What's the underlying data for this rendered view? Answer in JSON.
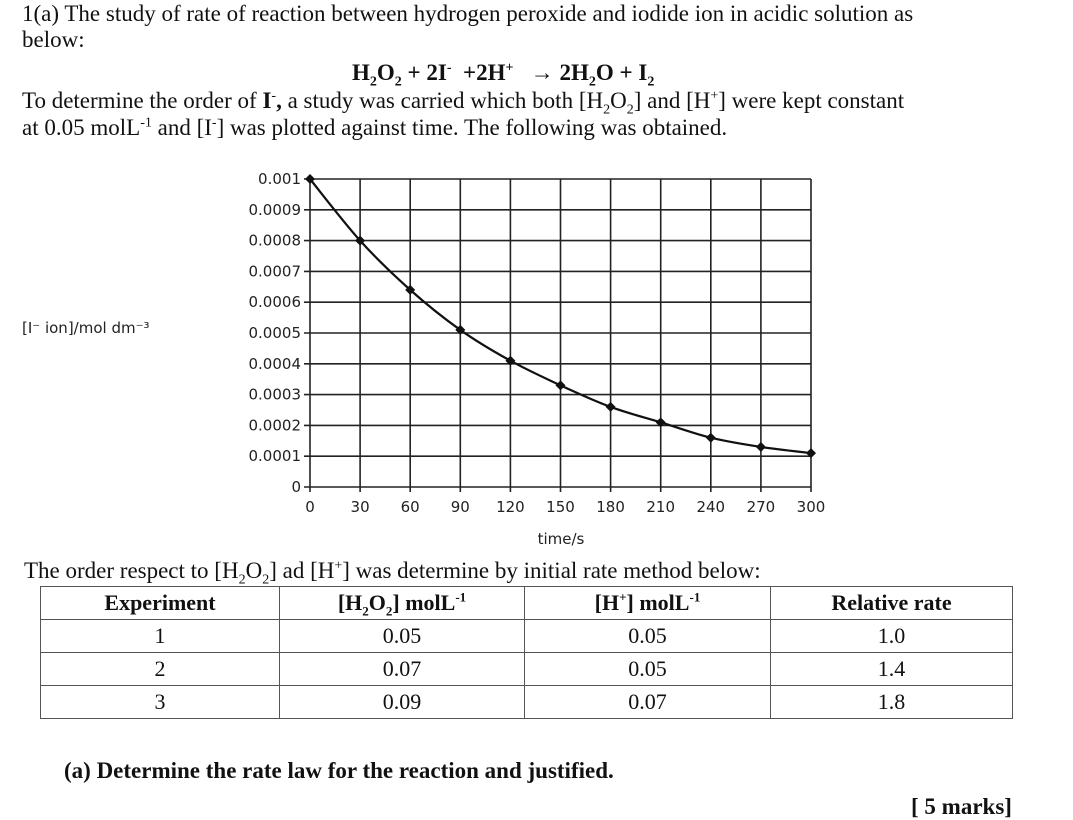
{
  "intro": {
    "line1": [
      {
        "t": "1(a) The study of rate of reaction between hydrogen peroxide and iodide ion in acidic solution as"
      }
    ],
    "line2": [
      {
        "t": "below:"
      }
    ],
    "equation": [
      {
        "t": "H"
      },
      {
        "sub": "2"
      },
      {
        "t": "O"
      },
      {
        "sub": "2"
      },
      {
        "t": " + 2I"
      },
      {
        "sup": "-"
      },
      {
        "t": "  +2H"
      },
      {
        "sup": "+"
      },
      {
        "t": "   → 2H"
      },
      {
        "sub": "2"
      },
      {
        "t": "O + I"
      },
      {
        "sub": "2"
      }
    ],
    "line3": [
      {
        "t": "To determine the order of "
      },
      {
        "b": "I"
      },
      {
        "sup": "-"
      },
      {
        "b": ","
      },
      {
        "t": " a study was carried which both [H"
      },
      {
        "sub": "2"
      },
      {
        "t": "O"
      },
      {
        "sub": "2"
      },
      {
        "t": "] and [H"
      },
      {
        "sup": "+"
      },
      {
        "t": "] were kept constant"
      }
    ],
    "line4": [
      {
        "t": "at 0.05 molL"
      },
      {
        "sup": "-1"
      },
      {
        "t": " and [I"
      },
      {
        "sup": "-"
      },
      {
        "t": "] was plotted against time. The following was obtained."
      }
    ]
  },
  "chart_data": {
    "type": "line",
    "xlabel": "time/s",
    "ylabel": "[I⁻ ion]/mol dm⁻³",
    "x": [
      0,
      30,
      60,
      90,
      120,
      150,
      180,
      210,
      240,
      270,
      300
    ],
    "values": [
      0.001,
      0.0008,
      0.00064,
      0.00051,
      0.00041,
      0.00033,
      0.00026,
      0.00021,
      0.00016,
      0.00013,
      0.00011
    ],
    "xlim": [
      0,
      300
    ],
    "ylim": [
      0,
      0.001
    ],
    "xticks": [
      "0",
      "30",
      "60",
      "90",
      "120",
      "150",
      "180",
      "210",
      "240",
      "270",
      "300"
    ],
    "yticks": [
      "0",
      "0.0001",
      "0.0002",
      "0.0003",
      "0.0004",
      "0.0005",
      "0.0006",
      "0.0007",
      "0.0008",
      "0.0009",
      "0.001"
    ],
    "grid": true,
    "markers": "diamond",
    "line_color": "#111111"
  },
  "table_intro": [
    {
      "t": "The order respect to [H"
    },
    {
      "sub": "2"
    },
    {
      "t": "O"
    },
    {
      "sub": "2"
    },
    {
      "t": "] ad [H"
    },
    {
      "sup": "+"
    },
    {
      "t": "] was determine by initial rate method below:"
    }
  ],
  "table": {
    "headers": [
      [
        {
          "t": "Experiment"
        }
      ],
      [
        {
          "t": "[H"
        },
        {
          "sub": "2"
        },
        {
          "t": "O"
        },
        {
          "sub": "2"
        },
        {
          "t": "] molL"
        },
        {
          "sup": "-1"
        }
      ],
      [
        {
          "t": "[H"
        },
        {
          "sup": "+"
        },
        {
          "t": "] molL"
        },
        {
          "sup": "-1"
        }
      ],
      [
        {
          "t": "Relative rate"
        }
      ]
    ],
    "rows": [
      [
        "1",
        "0.05",
        "0.05",
        "1.0"
      ],
      [
        "2",
        "0.07",
        "0.05",
        "1.4"
      ],
      [
        "3",
        "0.09",
        "0.07",
        "1.8"
      ]
    ]
  },
  "question": "(a) Determine the rate law for the reaction and justified.",
  "marks": "[ 5 marks]"
}
